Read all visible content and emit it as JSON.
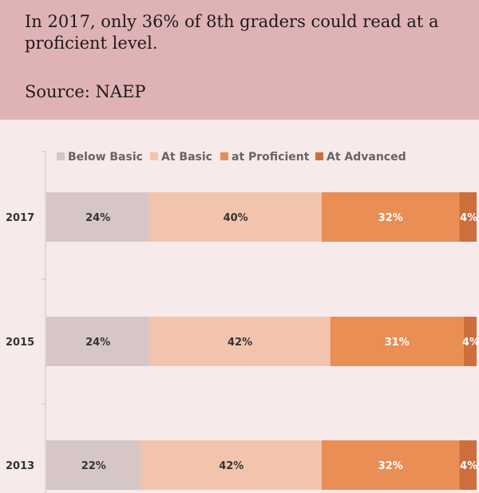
{
  "header": {
    "headline": "In 2017, only 36% of 8th graders could read at a proficient level.",
    "source": "Source: NAEP"
  },
  "chart_data": {
    "type": "bar",
    "orientation": "horizontal",
    "stacked": true,
    "title": "",
    "xlabel": "",
    "ylabel": "",
    "xlim": [
      0,
      100
    ],
    "legend_position": "top",
    "categories": [
      "2017",
      "2015",
      "2013"
    ],
    "series": [
      {
        "name": "Below Basic",
        "color": "#d6c7c6",
        "values": [
          24,
          24,
          22
        ],
        "labels": [
          "24%",
          "24%",
          "22%"
        ]
      },
      {
        "name": "At Basic",
        "color": "#f2c4ae",
        "values": [
          40,
          42,
          42
        ],
        "labels": [
          "40%",
          "42%",
          "42%"
        ]
      },
      {
        "name": "at Proficient",
        "color": "#e98e55",
        "values": [
          32,
          31,
          32
        ],
        "labels": [
          "32%",
          "31%",
          "32%"
        ]
      },
      {
        "name": "At Advanced",
        "color": "#cd6f3c",
        "values": [
          4,
          4,
          4
        ],
        "labels": [
          "4%",
          "4%",
          "4%"
        ]
      }
    ]
  }
}
